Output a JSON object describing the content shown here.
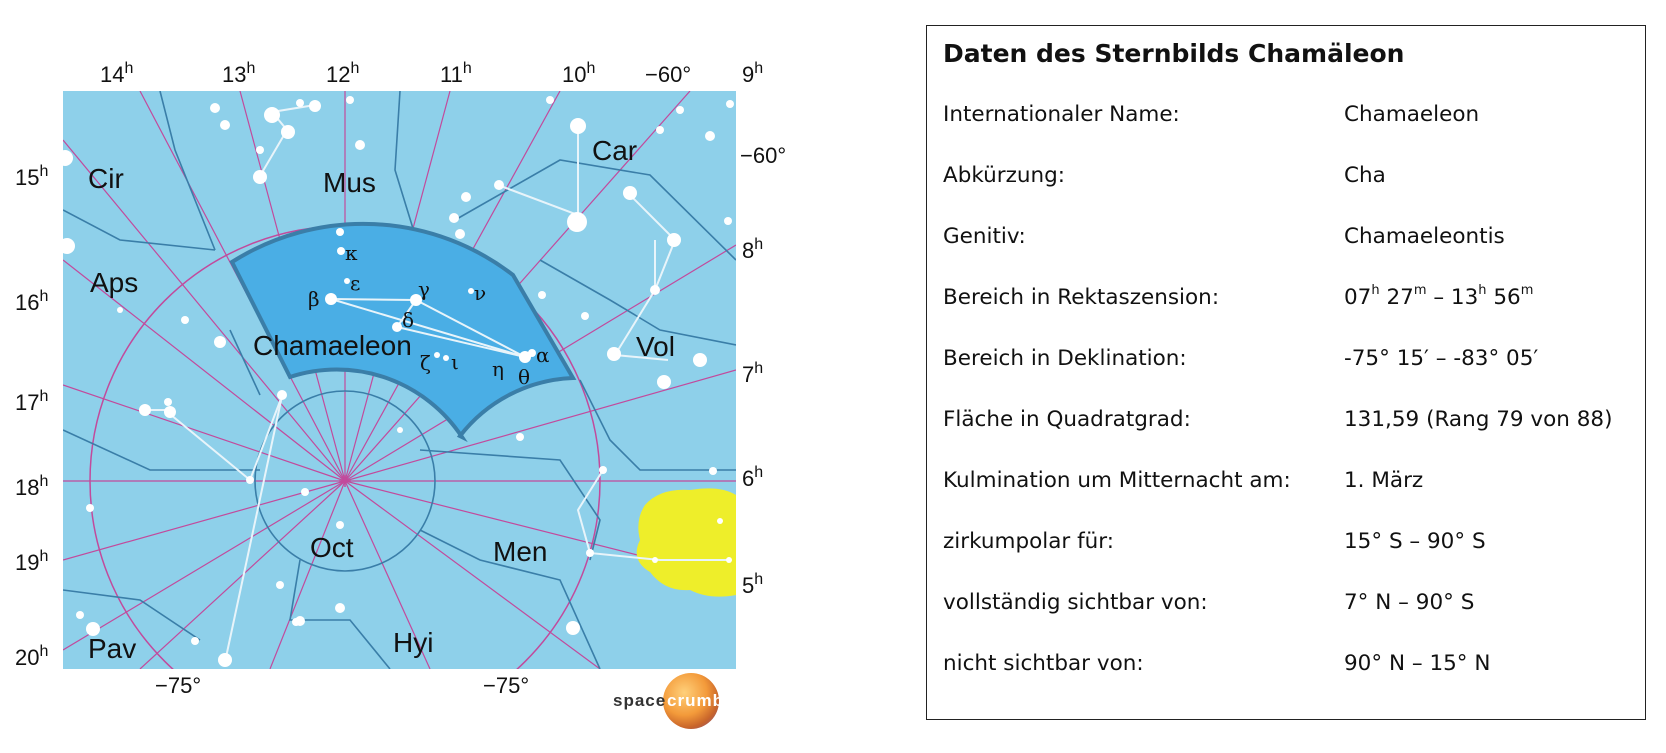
{
  "map": {
    "ra_labels_top": [
      "14h",
      "13h",
      "12h",
      "11h",
      "10h"
    ],
    "ra_labels_left": [
      "15h",
      "16h",
      "17h",
      "18h",
      "19h",
      "20h"
    ],
    "ra_labels_right": [
      "9h",
      "8h",
      "7h",
      "6h",
      "5h"
    ],
    "dec_top_label": "−60°",
    "dec_right_label": "−60°",
    "dec_bottom_left_label": "−75°",
    "dec_bottom_right_label": "−75°",
    "constellations": {
      "cir": "Cir",
      "mus": "Mus",
      "car": "Car",
      "aps": "Aps",
      "chamaeleon": "Chamaeleon",
      "vol": "Vol",
      "oct": "Oct",
      "men": "Men",
      "pav": "Pav",
      "hyi": "Hyi"
    },
    "stars": {
      "kappa": "κ",
      "epsilon": "ε",
      "gamma": "γ",
      "nu": "ν",
      "beta": "β",
      "delta": "δ",
      "alpha": "α",
      "zeta": "ζ",
      "iota": "ι",
      "eta": "η",
      "theta": "θ"
    },
    "colors": {
      "sky": "#8ed0ea",
      "highlight": "#4aaee5",
      "boundary": "#3a7ea8",
      "grid": "#c24a9c",
      "lmc": "#eeee2a"
    }
  },
  "logo": {
    "part1": "space",
    "part2": "crumb"
  },
  "table": {
    "title": "Daten des Sternbilds Chamäleon",
    "rows": [
      {
        "key": "Internationaler Name:",
        "value": "Chamaeleon"
      },
      {
        "key": "Abkürzung:",
        "value": "Cha"
      },
      {
        "key": "Genitiv:",
        "value": "Chamaeleontis"
      },
      {
        "key": "Bereich in Rektaszension:",
        "value": "07h 27m – 13h 56m"
      },
      {
        "key": "Bereich in Deklination:",
        "value": "-75° 15′ – -83° 05′"
      },
      {
        "key": "Fläche in Quadratgrad:",
        "value": "131,59 (Rang 79 von 88)"
      },
      {
        "key": "Kulmination um Mitternacht am:",
        "value": "1. März"
      },
      {
        "key": "zirkumpolar für:",
        "value": "15° S – 90° S"
      },
      {
        "key": "vollständig sichtbar von:",
        "value": "7° N – 90° S"
      },
      {
        "key": "nicht sichtbar von:",
        "value": "90° N – 15° N"
      }
    ]
  }
}
